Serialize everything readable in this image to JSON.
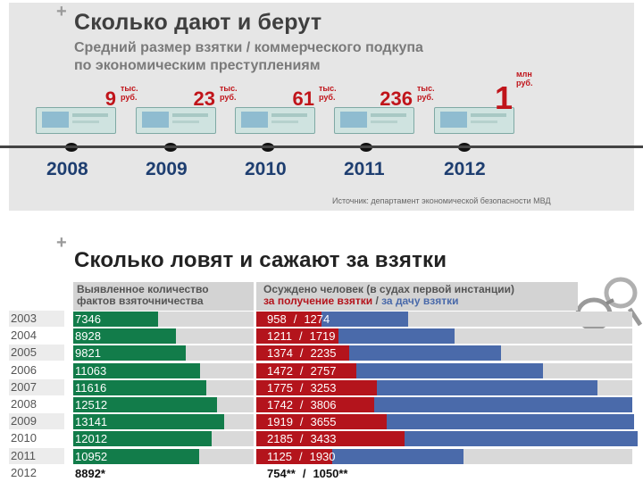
{
  "section1": {
    "plus": "+",
    "title": "Сколько дают и берут",
    "subtitle_line1": "Средний размер взятки / коммерческого подкупа",
    "subtitle_line2": "по экономическим преступлениям",
    "source": "Источник: департамент экономической безопасности МВД"
  },
  "section2": {
    "plus": "+",
    "title": "Сколько ловят и сажают за взятки",
    "left_header_line1": "Выявленное количество",
    "left_header_line2": "фактов взяточничества",
    "right_header_line1": "Осуждено человек (в судах первой инстанции)",
    "right_header_receive": "за получение взятки",
    "right_header_sep": " / ",
    "right_header_give": "за дачу взятки"
  },
  "colors": {
    "green": "#127c4a",
    "red": "#b4141c",
    "blue": "#4a6aaa",
    "gray_bar": "#d9d9d9",
    "amount_red": "#c0141a",
    "year_blue": "#1e3e70"
  },
  "chart_data": [
    {
      "type": "timeline",
      "title": "Средний размер взятки / коммерческого подкупа по экономическим преступлениям",
      "points": [
        {
          "year": "2008",
          "value": "9",
          "unit_line1": "тыс.",
          "unit_line2": "руб."
        },
        {
          "year": "2009",
          "value": "23",
          "unit_line1": "тыс.",
          "unit_line2": "руб."
        },
        {
          "year": "2010",
          "value": "61",
          "unit_line1": "тыс.",
          "unit_line2": "руб."
        },
        {
          "year": "2011",
          "value": "236",
          "unit_line1": "тыс.",
          "unit_line2": "руб."
        },
        {
          "year": "2012",
          "value": "1",
          "unit_line1": "млн",
          "unit_line2": "руб."
        }
      ]
    },
    {
      "type": "bar",
      "title": "Сколько ловят и сажают за взятки",
      "categories": [
        "2003",
        "2004",
        "2005",
        "2006",
        "2007",
        "2008",
        "2009",
        "2010",
        "2011",
        "2012"
      ],
      "series": [
        {
          "name": "Выявленное количество фактов взяточничества",
          "values": [
            7346,
            8928,
            9821,
            11063,
            11616,
            12512,
            13141,
            12012,
            10952,
            8892
          ],
          "labels": [
            "7346",
            "8928",
            "9821",
            "11063",
            "11616",
            "12512",
            "13141",
            "12012",
            "10952",
            "8892*"
          ]
        },
        {
          "name": "за получение взятки",
          "values": [
            958,
            1211,
            1374,
            1472,
            1775,
            1742,
            1919,
            2185,
            1125,
            754
          ],
          "labels": [
            "958",
            "1211",
            "1374",
            "1472",
            "1775",
            "1742",
            "1919",
            "2185",
            "1125",
            "754**"
          ]
        },
        {
          "name": "за дачу взятки",
          "values": [
            1274,
            1719,
            2235,
            2757,
            3253,
            3806,
            3655,
            3433,
            1930,
            1050
          ],
          "labels": [
            "1274",
            "1719",
            "2235",
            "2757",
            "3253",
            "3806",
            "3655",
            "3433",
            "1930",
            "1050**"
          ]
        }
      ],
      "bar_separator": "/",
      "last_row_bars_hidden": true,
      "green_scale_max": 15700,
      "right_scale_max": 5546
    }
  ]
}
